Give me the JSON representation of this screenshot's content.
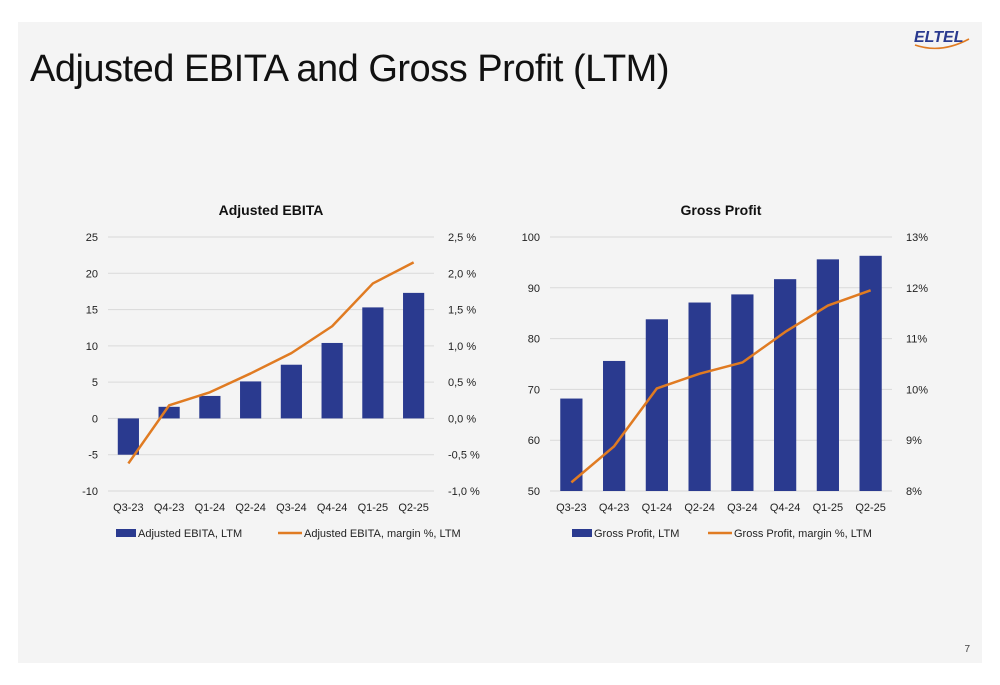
{
  "page": {
    "title": "Adjusted EBITA and Gross Profit (LTM)",
    "page_number": "7",
    "logo_text": "ELTEL"
  },
  "colors": {
    "bar": "#2a3a8f",
    "line": "#e07b22",
    "grid": "#d9d9d9"
  },
  "chart_data": [
    {
      "type": "bar+line",
      "title": "Adjusted EBITA",
      "categories": [
        "Q3-23",
        "Q4-23",
        "Q1-24",
        "Q2-24",
        "Q3-24",
        "Q4-24",
        "Q1-25",
        "Q2-25"
      ],
      "y_ticks": [
        "25",
        "20",
        "15",
        "10",
        "5",
        "0",
        "-5",
        "-10"
      ],
      "y2_ticks": [
        "2,5 %",
        "2,0 %",
        "1,5 %",
        "1,0 %",
        "0,5 %",
        "0,0 %",
        "-0,5 %",
        "-1,0 %"
      ],
      "ylim": [
        -10,
        25
      ],
      "y2lim": [
        -1.0,
        2.5
      ],
      "series": [
        {
          "name": "Adjusted EBITA, LTM",
          "kind": "bar",
          "axis": "left",
          "values": [
            -5.0,
            1.6,
            3.1,
            5.1,
            7.4,
            10.4,
            15.3,
            17.3
          ]
        },
        {
          "name": "Adjusted EBITA, margin %, LTM",
          "kind": "line",
          "axis": "right",
          "values": [
            -0.62,
            0.18,
            0.36,
            0.62,
            0.9,
            1.27,
            1.86,
            2.15
          ]
        }
      ],
      "legend": "bottom",
      "grid": true
    },
    {
      "type": "bar+line",
      "title": "Gross Profit",
      "categories": [
        "Q3-23",
        "Q4-23",
        "Q1-24",
        "Q2-24",
        "Q3-24",
        "Q4-24",
        "Q1-25",
        "Q2-25"
      ],
      "y_ticks": [
        "100",
        "90",
        "80",
        "70",
        "60",
        "50"
      ],
      "y2_ticks": [
        "13%",
        "12%",
        "11%",
        "10%",
        "9%",
        "8%"
      ],
      "ylim": [
        50,
        100
      ],
      "y2lim": [
        8,
        13
      ],
      "series": [
        {
          "name": "Gross Profit, LTM",
          "kind": "bar",
          "axis": "left",
          "values": [
            68.2,
            75.6,
            83.8,
            87.1,
            88.7,
            91.7,
            95.6,
            96.3
          ]
        },
        {
          "name": "Gross Profit, margin %, LTM",
          "kind": "line",
          "axis": "right",
          "values": [
            8.17,
            8.88,
            10.02,
            10.31,
            10.53,
            11.13,
            11.65,
            11.95
          ]
        }
      ],
      "legend": "bottom",
      "grid": true
    }
  ]
}
